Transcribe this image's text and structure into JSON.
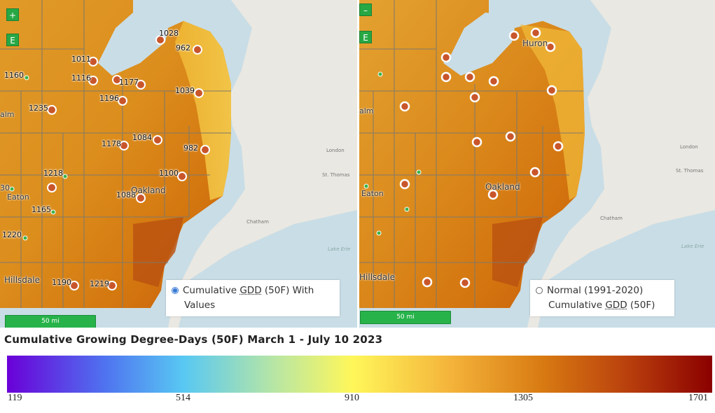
{
  "left_map": {
    "zoom_in_label": "+",
    "zoom_out_label": "–",
    "layer_button_label": "E",
    "scale_label": "50 mi",
    "layer_option": {
      "label_line1": "Cumulative GDD (50F) With",
      "label_line2": "Values",
      "selected": true
    },
    "gdd_values": [
      "1028",
      "962",
      "1011",
      "1160",
      "1116",
      "1177",
      "1039",
      "1196",
      "1235",
      "1178",
      "1084",
      "982",
      "1218",
      "1100",
      "1088",
      "1165",
      "1220",
      "1190",
      "1219"
    ],
    "places": [
      "Oakland",
      "Eaton",
      "Hillsdale",
      "alm",
      "30"
    ],
    "minor_places": [
      "London",
      "St. Thomas",
      "Chatham",
      "Lake Erie"
    ]
  },
  "right_map": {
    "zoom_in_label": "+",
    "zoom_out_label": "–",
    "layer_button_label": "E",
    "scale_label": "50 mi",
    "layer_option": {
      "label_line1": "Normal (1991-2020)",
      "label_line2": "Cumulative GDD (50F)",
      "selected": false
    },
    "places": [
      "Huron",
      "Oakland",
      "Eaton",
      "Hillsdale",
      "alm"
    ],
    "minor_places": [
      "London",
      "St. Thomas",
      "Chatham",
      "Lake Erie"
    ]
  },
  "legend": {
    "title": "Cumulative Growing Degree-Days (50F) March 1 - July 10 2023",
    "ticks": [
      "119",
      "514",
      "910",
      "1305",
      "1701"
    ],
    "colors": [
      "#6a00d8",
      "#4f74f0",
      "#58c8f3",
      "#b8e6a4",
      "#fff75a",
      "#f4b33a",
      "#d87a12",
      "#b9400d",
      "#8b0000"
    ]
  },
  "colors": {
    "water": "#c9dde6",
    "land": "#eae8e2",
    "station_marker": "#c9562b",
    "small_station": "#3cb34a",
    "control_green": "#27a844"
  }
}
